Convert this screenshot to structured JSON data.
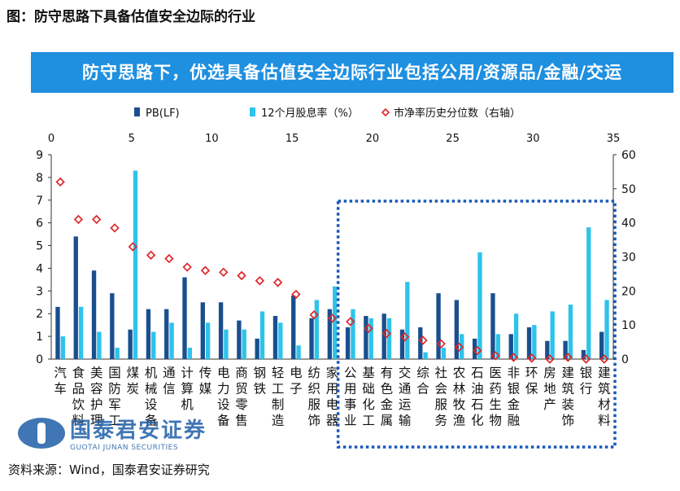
{
  "figure_title": "图：防守思路下具备估值安全边际的行业",
  "banner_title": "防守思路下，优选具备估值安全边际行业包括公用/资源品/金融/交运",
  "source_note": "资料来源：Wind，国泰君安证券研究",
  "logo": {
    "name_cn": "国泰君安证券",
    "name_en": "GUOTAI JUNAN SECURITIES"
  },
  "chart_data": {
    "type": "bar",
    "legend_placement": "top",
    "categories": [
      "汽车",
      "食品饮料",
      "美容护理",
      "国防军工",
      "煤炭",
      "机械设备",
      "通信",
      "计算机",
      "传媒",
      "电力设备",
      "商贸零售",
      "钢铁",
      "轻工制造",
      "电子",
      "纺织服饰",
      "家用电器",
      "公用事业",
      "基础化工",
      "有色金属",
      "交通运输",
      "综合",
      "社会服务",
      "农林牧渔",
      "石油石化",
      "医药生物",
      "非银金融",
      "环保",
      "房地产",
      "建筑装饰",
      "银行",
      "建筑材料"
    ],
    "series": [
      {
        "name": "PB(LF)",
        "axis": "left",
        "color": "#1a4f8f",
        "values": [
          2.3,
          5.4,
          3.9,
          2.9,
          1.3,
          2.2,
          2.2,
          3.6,
          2.5,
          2.5,
          1.7,
          0.9,
          1.9,
          2.8,
          1.8,
          2.2,
          1.4,
          1.9,
          2.0,
          1.3,
          1.4,
          2.9,
          2.6,
          0.9,
          2.9,
          1.1,
          1.4,
          0.8,
          0.8,
          0.4,
          1.2
        ]
      },
      {
        "name": "12个月股息率（%）",
        "axis": "left",
        "color": "#2ec3ea",
        "values": [
          1.0,
          2.3,
          1.2,
          0.5,
          8.3,
          1.2,
          1.6,
          0.5,
          1.6,
          1.3,
          1.3,
          2.1,
          1.6,
          0.6,
          2.6,
          3.2,
          2.2,
          1.8,
          1.8,
          3.4,
          0.3,
          0.5,
          1.1,
          4.7,
          1.1,
          2.0,
          1.5,
          2.1,
          2.4,
          5.8,
          2.6
        ]
      },
      {
        "name": "市净率历史分位数（右轴）",
        "axis": "right",
        "color": "#e0262a",
        "marker": "diamond-open",
        "values": [
          52,
          41,
          41,
          38.5,
          33,
          30.5,
          29.5,
          27,
          26,
          25.5,
          24.5,
          23,
          22.5,
          19,
          13,
          12,
          11,
          9,
          7.5,
          6.5,
          5.5,
          4.5,
          3.5,
          2.5,
          1,
          0.5,
          0.3,
          0,
          0.5,
          0,
          0
        ]
      }
    ],
    "left_axis": {
      "min": 0,
      "max": 9,
      "ticks": [
        0,
        1,
        2,
        3,
        4,
        5,
        6,
        7,
        8,
        9
      ]
    },
    "right_axis": {
      "min": 0,
      "max": 60,
      "ticks": [
        0,
        10,
        20,
        30,
        40,
        50,
        60
      ]
    },
    "top_axis": {
      "min": 0,
      "max": 35,
      "ticks": [
        0,
        5,
        10,
        15,
        20,
        25,
        30,
        35
      ]
    },
    "highlight_range": {
      "from_category": "公用事业",
      "to_category": "建筑材料",
      "style": "dotted",
      "color": "#1a58b8"
    }
  }
}
